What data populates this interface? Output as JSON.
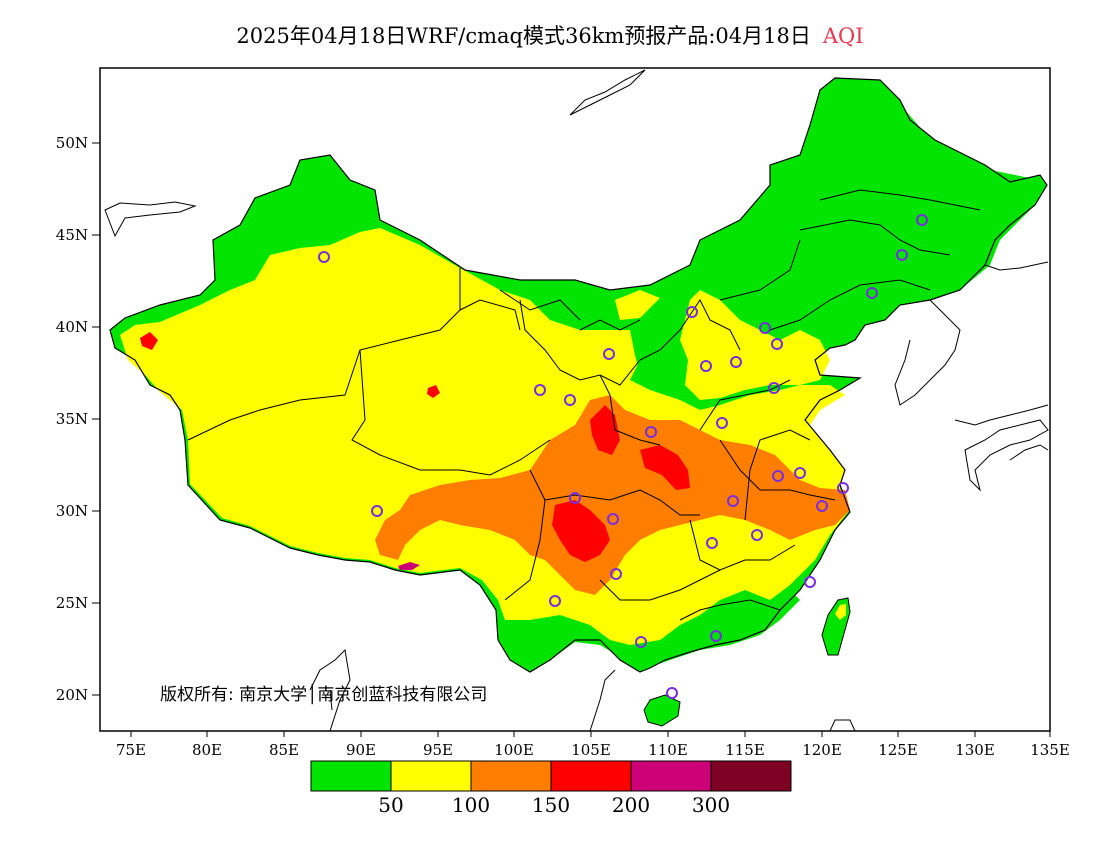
{
  "title": {
    "main": "2025年04月18日WRF/cmaq模式36km预报产品:04月18日",
    "variable": "AQI"
  },
  "axes": {
    "lat_labels": [
      "50N",
      "45N",
      "40N",
      "35N",
      "30N",
      "25N",
      "20N"
    ],
    "lon_labels": [
      "75E",
      "80E",
      "85E",
      "90E",
      "95E",
      "100E",
      "105E",
      "110E",
      "115E",
      "120E",
      "125E",
      "130E",
      "135E"
    ]
  },
  "legend": {
    "colors": [
      "#00e400",
      "#ffff00",
      "#ff7e00",
      "#ff0000",
      "#cc0077",
      "#7e0023"
    ],
    "thresholds": [
      "50",
      "100",
      "150",
      "200",
      "300"
    ]
  },
  "copyright": "版权所有: 南京大学│南京创蓝科技有限公司",
  "map_colors": {
    "good": "#00e400",
    "moderate": "#ffff00",
    "sensitive": "#ff7e00",
    "unhealthy": "#ff0000",
    "very_unhealthy": "#cc0077",
    "station_marker": "#7a2de0"
  }
}
